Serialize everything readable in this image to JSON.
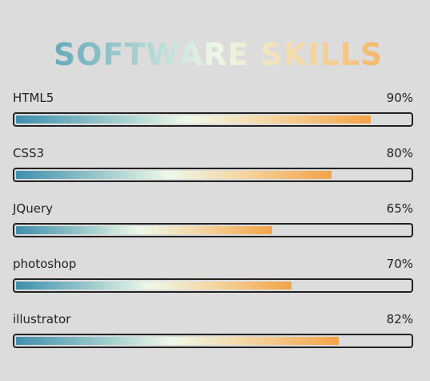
{
  "title": "SOFTWARE SKILLS",
  "colors": {
    "background": "#dcdcdc",
    "gradient_start": "#3f8fad",
    "gradient_mid": "#eef8ea",
    "gradient_end": "#f4a347",
    "bar_border": "#222222"
  },
  "skills": [
    {
      "name": "HTML5",
      "percent_label": "90%",
      "level": 0.9
    },
    {
      "name": "CSS3",
      "percent_label": "80%",
      "level": 0.8
    },
    {
      "name": "JQuery",
      "percent_label": "65%",
      "level": 0.65
    },
    {
      "name": "photoshop",
      "percent_label": "70%",
      "level": 0.7
    },
    {
      "name": "illustrator",
      "percent_label": "82%",
      "level": 0.82
    }
  ]
}
